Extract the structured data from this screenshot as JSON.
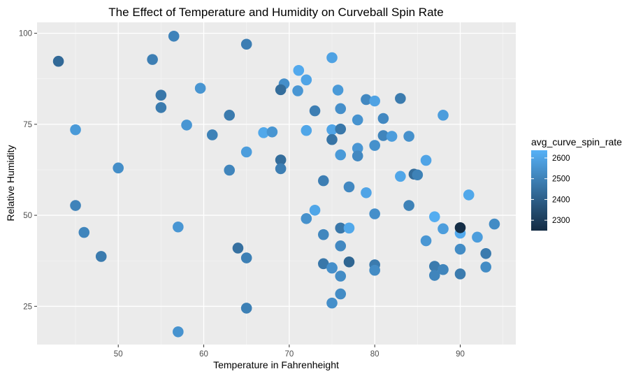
{
  "chart_data": {
    "type": "scatter",
    "title": "The Effect of Temperature and Humidity on Curveball Spin Rate",
    "xlabel": "Temperature in Fahrenheight",
    "ylabel": "Relative Humidity",
    "xlim": [
      40.5,
      96.5
    ],
    "ylim": [
      14.5,
      103
    ],
    "x_ticks": [
      50,
      60,
      70,
      80,
      90
    ],
    "x_tick_labels": [
      "50",
      "60",
      "70",
      "80",
      "90"
    ],
    "x_minor_ticks": [
      45,
      55,
      65,
      75,
      85,
      95
    ],
    "y_ticks": [
      25,
      50,
      75,
      100
    ],
    "y_tick_labels": [
      "25",
      "50",
      "75",
      "100"
    ],
    "y_minor_ticks": [
      37.5,
      62.5,
      87.5
    ],
    "grid": true,
    "legend": {
      "title": "avg_curve_spin_rate",
      "placement": "right",
      "type": "colorbar",
      "range": [
        2250,
        2637
      ],
      "low_color": "#132B43",
      "high_color": "#56B1F7",
      "ticks": [
        2300,
        2400,
        2500,
        2600
      ],
      "tick_labels": [
        "2300",
        "2400",
        "2500",
        "2600"
      ]
    },
    "colors": {
      "panel_background": "#EBEBEB",
      "grid_major": "#FFFFFF",
      "grid_minor": "#F5F5F5"
    },
    "points": [
      {
        "x": 43,
        "y": 92.3,
        "spin": 2430
      },
      {
        "x": 54,
        "y": 92.8,
        "spin": 2490
      },
      {
        "x": 56.5,
        "y": 99.2,
        "spin": 2505
      },
      {
        "x": 55,
        "y": 83,
        "spin": 2470
      },
      {
        "x": 55,
        "y": 79.6,
        "spin": 2480
      },
      {
        "x": 58,
        "y": 74.8,
        "spin": 2560
      },
      {
        "x": 45,
        "y": 73.5,
        "spin": 2570
      },
      {
        "x": 50,
        "y": 63,
        "spin": 2535
      },
      {
        "x": 45,
        "y": 52.7,
        "spin": 2505
      },
      {
        "x": 46,
        "y": 45.3,
        "spin": 2510
      },
      {
        "x": 48,
        "y": 38.7,
        "spin": 2480
      },
      {
        "x": 57,
        "y": 46.8,
        "spin": 2560
      },
      {
        "x": 57,
        "y": 18,
        "spin": 2550
      },
      {
        "x": 65,
        "y": 97,
        "spin": 2490
      },
      {
        "x": 59.6,
        "y": 84.9,
        "spin": 2555
      },
      {
        "x": 63,
        "y": 77.5,
        "spin": 2480
      },
      {
        "x": 61,
        "y": 72.1,
        "spin": 2500
      },
      {
        "x": 67,
        "y": 72.7,
        "spin": 2610
      },
      {
        "x": 68,
        "y": 72.9,
        "spin": 2555
      },
      {
        "x": 69.4,
        "y": 86.1,
        "spin": 2540
      },
      {
        "x": 69,
        "y": 84.5,
        "spin": 2440
      },
      {
        "x": 71.1,
        "y": 89.8,
        "spin": 2615
      },
      {
        "x": 72,
        "y": 87.2,
        "spin": 2600
      },
      {
        "x": 71,
        "y": 84.2,
        "spin": 2560
      },
      {
        "x": 73,
        "y": 78.7,
        "spin": 2490
      },
      {
        "x": 72,
        "y": 73.3,
        "spin": 2605
      },
      {
        "x": 65,
        "y": 67.4,
        "spin": 2580
      },
      {
        "x": 63,
        "y": 62.4,
        "spin": 2510
      },
      {
        "x": 69,
        "y": 65.2,
        "spin": 2440
      },
      {
        "x": 69,
        "y": 62.8,
        "spin": 2490
      },
      {
        "x": 75,
        "y": 93.3,
        "spin": 2595
      },
      {
        "x": 74,
        "y": 59.5,
        "spin": 2490
      },
      {
        "x": 73,
        "y": 51.4,
        "spin": 2605
      },
      {
        "x": 72,
        "y": 49.1,
        "spin": 2545
      },
      {
        "x": 74,
        "y": 44.7,
        "spin": 2515
      },
      {
        "x": 64,
        "y": 41,
        "spin": 2450
      },
      {
        "x": 65,
        "y": 38.3,
        "spin": 2495
      },
      {
        "x": 65,
        "y": 24.5,
        "spin": 2495
      },
      {
        "x": 74,
        "y": 36.7,
        "spin": 2470
      },
      {
        "x": 75,
        "y": 35.5,
        "spin": 2540
      },
      {
        "x": 75,
        "y": 25.9,
        "spin": 2540
      },
      {
        "x": 75.7,
        "y": 84.4,
        "spin": 2570
      },
      {
        "x": 79,
        "y": 81.8,
        "spin": 2520
      },
      {
        "x": 80,
        "y": 81.4,
        "spin": 2595
      },
      {
        "x": 83,
        "y": 82.1,
        "spin": 2480
      },
      {
        "x": 76,
        "y": 79.3,
        "spin": 2540
      },
      {
        "x": 78,
        "y": 76.2,
        "spin": 2550
      },
      {
        "x": 81,
        "y": 76.6,
        "spin": 2520
      },
      {
        "x": 75,
        "y": 73.5,
        "spin": 2600
      },
      {
        "x": 76,
        "y": 73.7,
        "spin": 2470
      },
      {
        "x": 75,
        "y": 70.8,
        "spin": 2460
      },
      {
        "x": 81,
        "y": 71.9,
        "spin": 2510
      },
      {
        "x": 82,
        "y": 71.7,
        "spin": 2580
      },
      {
        "x": 84,
        "y": 71.7,
        "spin": 2545
      },
      {
        "x": 78,
        "y": 68.4,
        "spin": 2560
      },
      {
        "x": 78,
        "y": 66.3,
        "spin": 2520
      },
      {
        "x": 80,
        "y": 69.2,
        "spin": 2545
      },
      {
        "x": 76,
        "y": 66.6,
        "spin": 2570
      },
      {
        "x": 86,
        "y": 65.1,
        "spin": 2600
      },
      {
        "x": 83,
        "y": 60.7,
        "spin": 2605
      },
      {
        "x": 84.6,
        "y": 61.3,
        "spin": 2440
      },
      {
        "x": 85,
        "y": 61.1,
        "spin": 2500
      },
      {
        "x": 77,
        "y": 57.8,
        "spin": 2520
      },
      {
        "x": 79,
        "y": 56.2,
        "spin": 2600
      },
      {
        "x": 84,
        "y": 52.7,
        "spin": 2500
      },
      {
        "x": 80,
        "y": 50.4,
        "spin": 2540
      },
      {
        "x": 76,
        "y": 46.5,
        "spin": 2470
      },
      {
        "x": 77,
        "y": 46.5,
        "spin": 2610
      },
      {
        "x": 76,
        "y": 41.6,
        "spin": 2520
      },
      {
        "x": 77,
        "y": 37.2,
        "spin": 2420
      },
      {
        "x": 75,
        "y": 35.6,
        "spin": 2540
      },
      {
        "x": 80,
        "y": 36.4,
        "spin": 2480
      },
      {
        "x": 80,
        "y": 34.9,
        "spin": 2530
      },
      {
        "x": 76,
        "y": 33.3,
        "spin": 2530
      },
      {
        "x": 76,
        "y": 28.4,
        "spin": 2530
      },
      {
        "x": 88,
        "y": 77.5,
        "spin": 2580
      },
      {
        "x": 91,
        "y": 55.6,
        "spin": 2610
      },
      {
        "x": 87,
        "y": 49.6,
        "spin": 2625
      },
      {
        "x": 88,
        "y": 46.3,
        "spin": 2580
      },
      {
        "x": 90,
        "y": 45.1,
        "spin": 2615
      },
      {
        "x": 90,
        "y": 46.6,
        "spin": 2255
      },
      {
        "x": 92,
        "y": 44,
        "spin": 2580
      },
      {
        "x": 94,
        "y": 47.6,
        "spin": 2530
      },
      {
        "x": 86,
        "y": 43,
        "spin": 2560
      },
      {
        "x": 90,
        "y": 40.7,
        "spin": 2530
      },
      {
        "x": 93,
        "y": 39.5,
        "spin": 2480
      },
      {
        "x": 87,
        "y": 36,
        "spin": 2480
      },
      {
        "x": 88,
        "y": 35.1,
        "spin": 2510
      },
      {
        "x": 87,
        "y": 33.5,
        "spin": 2510
      },
      {
        "x": 90,
        "y": 33.9,
        "spin": 2480
      },
      {
        "x": 93,
        "y": 35.8,
        "spin": 2530
      }
    ]
  }
}
